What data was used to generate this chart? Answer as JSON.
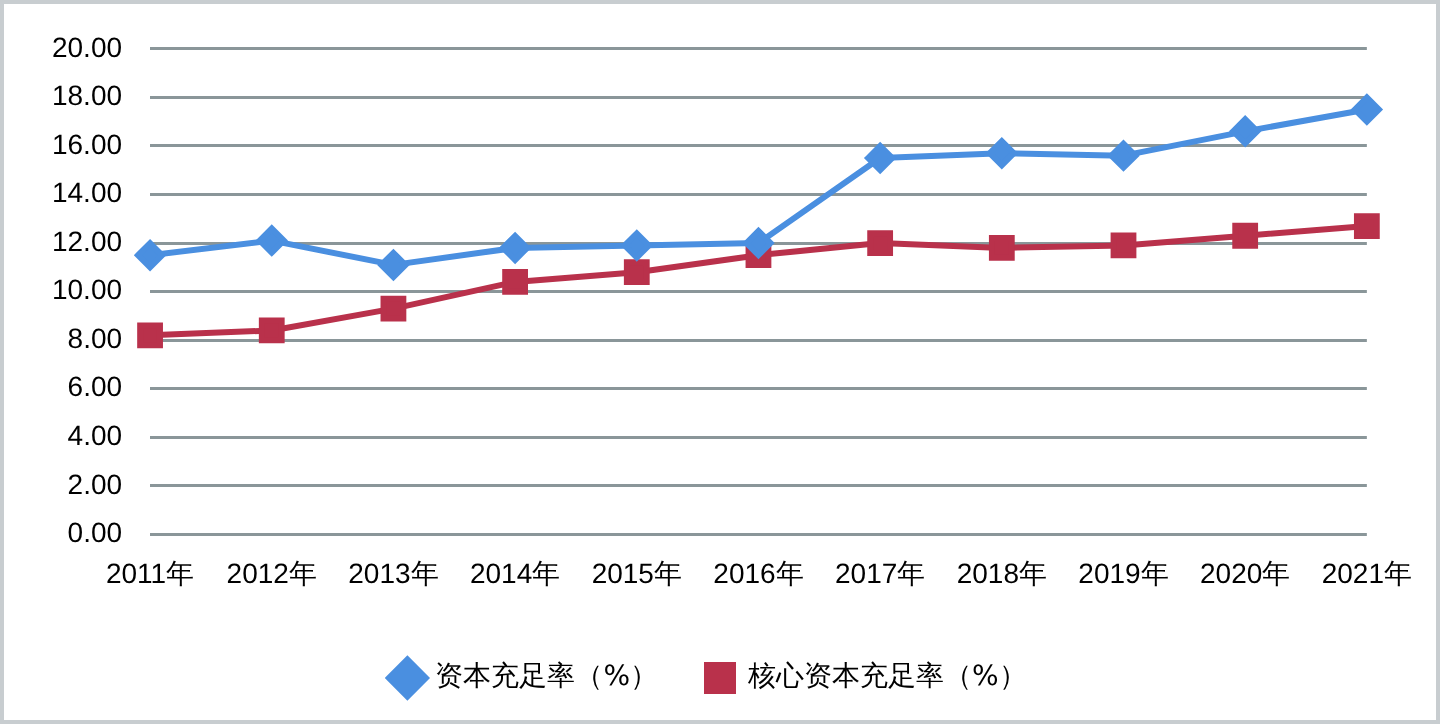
{
  "chart_data": {
    "type": "line",
    "categories": [
      "2011年",
      "2012年",
      "2013年",
      "2014年",
      "2015年",
      "2016年",
      "2017年",
      "2018年",
      "2019年",
      "2020年",
      "2021年"
    ],
    "series": [
      {
        "name": "资本充足率（%）",
        "color": "#4a8fe0",
        "marker": "diamond",
        "values": [
          11.5,
          12.1,
          11.1,
          11.8,
          11.9,
          12.0,
          15.5,
          15.7,
          15.6,
          16.6,
          17.5
        ]
      },
      {
        "name": "核心资本充足率（%）",
        "color": "#b9314b",
        "marker": "square",
        "values": [
          8.2,
          8.4,
          9.3,
          10.4,
          10.8,
          11.5,
          12.0,
          11.8,
          11.9,
          12.3,
          12.7
        ]
      }
    ],
    "ylim": [
      0,
      20
    ],
    "yticks": [
      {
        "value": 0,
        "label": "0.00"
      },
      {
        "value": 2,
        "label": "2.00"
      },
      {
        "value": 4,
        "label": "4.00"
      },
      {
        "value": 6,
        "label": "6.00"
      },
      {
        "value": 8,
        "label": "8.00"
      },
      {
        "value": 10,
        "label": "10.00"
      },
      {
        "value": 12,
        "label": "12.00"
      },
      {
        "value": 14,
        "label": "14.00"
      },
      {
        "value": 16,
        "label": "16.00"
      },
      {
        "value": 18,
        "label": "18.00"
      },
      {
        "value": 20,
        "label": "20.00"
      }
    ],
    "grid": "y",
    "legend": "bottom"
  }
}
